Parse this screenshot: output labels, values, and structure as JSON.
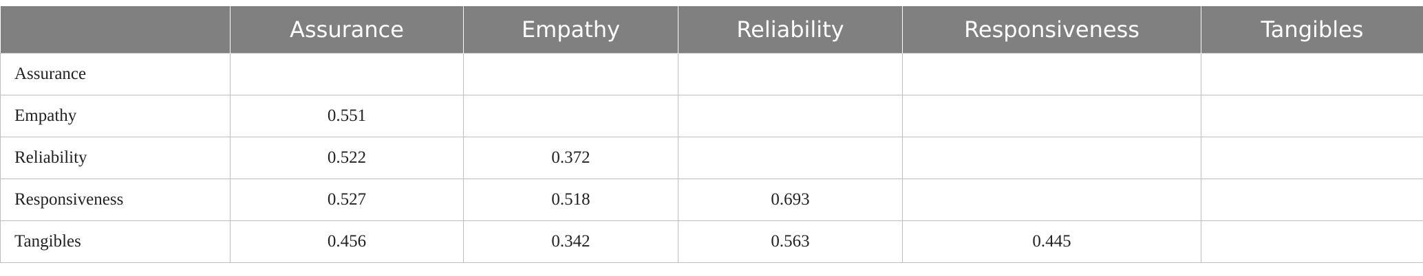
{
  "table": {
    "columns": [
      "Assurance",
      "Empathy",
      "Reliability",
      "Responsiveness",
      "Tangibles"
    ],
    "rows": [
      {
        "label": "Assurance",
        "values": []
      },
      {
        "label": "Empathy",
        "values": [
          0.551
        ]
      },
      {
        "label": "Reliability",
        "values": [
          0.522,
          0.372
        ]
      },
      {
        "label": "Responsiveness",
        "values": [
          0.527,
          0.518,
          0.693
        ]
      },
      {
        "label": "Tangibles",
        "values": [
          0.456,
          0.342,
          0.563,
          0.445
        ]
      }
    ]
  }
}
